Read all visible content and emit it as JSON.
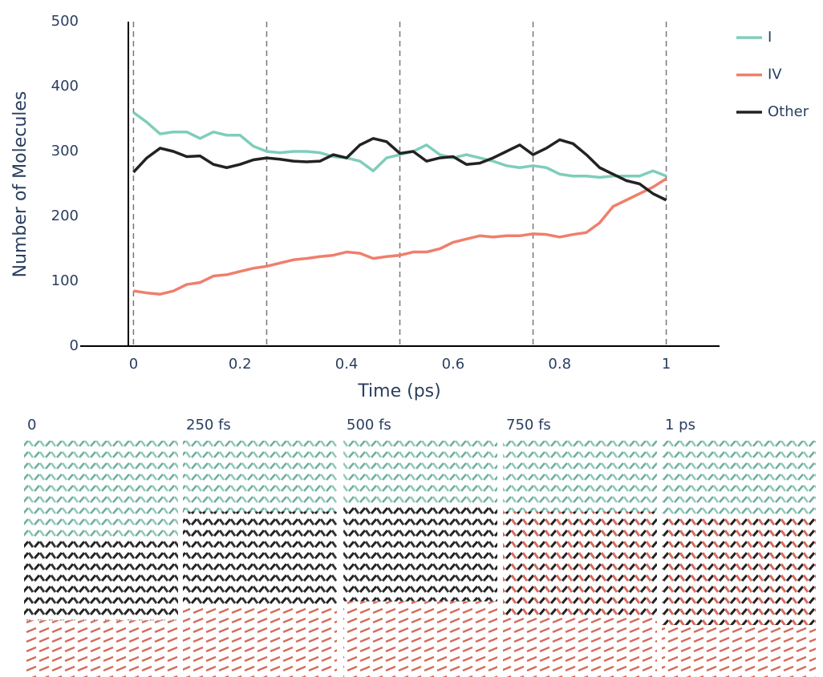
{
  "chart_data": {
    "type": "line",
    "xlabel": "Time (ps)",
    "ylabel": "Number of Molecules",
    "x": [
      0,
      0.025,
      0.05,
      0.075,
      0.1,
      0.125,
      0.15,
      0.175,
      0.2,
      0.225,
      0.25,
      0.275,
      0.3,
      0.325,
      0.35,
      0.375,
      0.4,
      0.425,
      0.45,
      0.475,
      0.5,
      0.525,
      0.55,
      0.575,
      0.6,
      0.625,
      0.65,
      0.675,
      0.7,
      0.725,
      0.75,
      0.775,
      0.8,
      0.825,
      0.85,
      0.875,
      0.9,
      0.925,
      0.95,
      0.975,
      1
    ],
    "series": [
      {
        "name": "I",
        "color": "#7fcdbb",
        "values": [
          360,
          345,
          327,
          330,
          330,
          320,
          330,
          325,
          325,
          308,
          300,
          298,
          300,
          300,
          298,
          292,
          290,
          285,
          270,
          290,
          295,
          300,
          310,
          295,
          290,
          295,
          290,
          285,
          278,
          275,
          278,
          275,
          265,
          262,
          262,
          260,
          262,
          262,
          262,
          270,
          262
        ]
      },
      {
        "name": "IV",
        "color": "#ef7f6c",
        "values": [
          85,
          82,
          80,
          85,
          95,
          98,
          108,
          110,
          115,
          120,
          123,
          128,
          133,
          135,
          138,
          140,
          145,
          143,
          135,
          138,
          140,
          145,
          145,
          150,
          160,
          165,
          170,
          168,
          170,
          170,
          173,
          172,
          168,
          172,
          175,
          190,
          215,
          225,
          235,
          245,
          258
        ]
      },
      {
        "name": "Other",
        "color": "#222222",
        "values": [
          268,
          290,
          305,
          300,
          292,
          293,
          280,
          275,
          280,
          287,
          290,
          288,
          285,
          284,
          285,
          295,
          290,
          310,
          320,
          315,
          297,
          300,
          285,
          290,
          292,
          280,
          282,
          290,
          300,
          310,
          295,
          305,
          318,
          312,
          295,
          275,
          265,
          255,
          250,
          235,
          225
        ]
      }
    ],
    "xlim": [
      -0.1,
      1.1
    ],
    "xticks": [
      0,
      0.2,
      0.4,
      0.6,
      0.8,
      1
    ],
    "ylim": [
      0,
      500
    ],
    "yticks": [
      0,
      100,
      200,
      300,
      400,
      500
    ],
    "vlines": [
      0,
      0.25,
      0.5,
      0.75,
      1
    ],
    "grid": false,
    "legend": "top-right"
  },
  "snapshots": {
    "labels": [
      "0",
      "250 fs",
      "500 fs",
      "750 fs",
      "1 ps"
    ]
  }
}
